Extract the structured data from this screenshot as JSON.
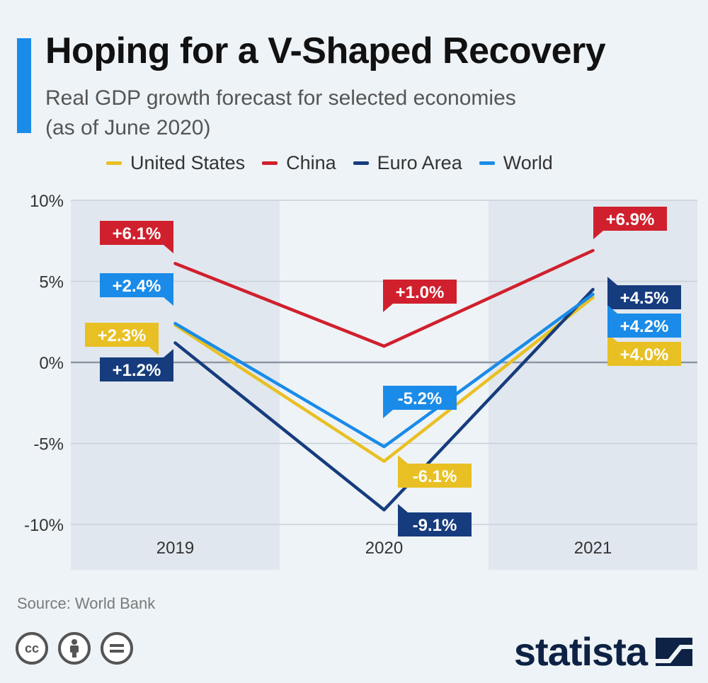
{
  "header": {
    "title": "Hoping for a V-Shaped Recovery",
    "subtitle_line1": "Real GDP growth forecast for selected economies",
    "subtitle_line2": "(as of June 2020)",
    "accent_color": "#1a8be8"
  },
  "legend": {
    "items": [
      {
        "label": "United States",
        "color": "#e8c023"
      },
      {
        "label": "China",
        "color": "#d0202d"
      },
      {
        "label": "Euro Area",
        "color": "#163c7e"
      },
      {
        "label": "World",
        "color": "#1a8be8"
      }
    ]
  },
  "chart_data": {
    "type": "line",
    "categories": [
      "2019",
      "2020",
      "2021"
    ],
    "ylim": [
      -10,
      10
    ],
    "yticks": [
      10,
      5,
      0,
      -5,
      -10
    ],
    "ytick_labels": [
      "10%",
      "5%",
      "0%",
      "-5%",
      "-10%"
    ],
    "grid": true,
    "legend_position": "top",
    "series": [
      {
        "name": "United States",
        "color": "#e8c023",
        "values": [
          2.3,
          -6.1,
          4.0
        ],
        "labels": [
          "+2.3%",
          "-6.1%",
          "+4.0%"
        ]
      },
      {
        "name": "China",
        "color": "#d0202d",
        "values": [
          6.1,
          1.0,
          6.9
        ],
        "labels": [
          "+6.1%",
          "+1.0%",
          "+6.9%"
        ]
      },
      {
        "name": "Euro Area",
        "color": "#163c7e",
        "values": [
          1.2,
          -9.1,
          4.5
        ],
        "labels": [
          "+1.2%",
          "-9.1%",
          "+4.5%"
        ]
      },
      {
        "name": "World",
        "color": "#1a8be8",
        "values": [
          2.4,
          -5.2,
          4.2
        ],
        "labels": [
          "+2.4%",
          "-5.2%",
          "+4.2%"
        ]
      }
    ]
  },
  "footer": {
    "source": "Source: World Bank",
    "license_icons": [
      "cc-icon",
      "attribution-icon",
      "no-derivatives-icon"
    ],
    "logo_text": "statista"
  }
}
